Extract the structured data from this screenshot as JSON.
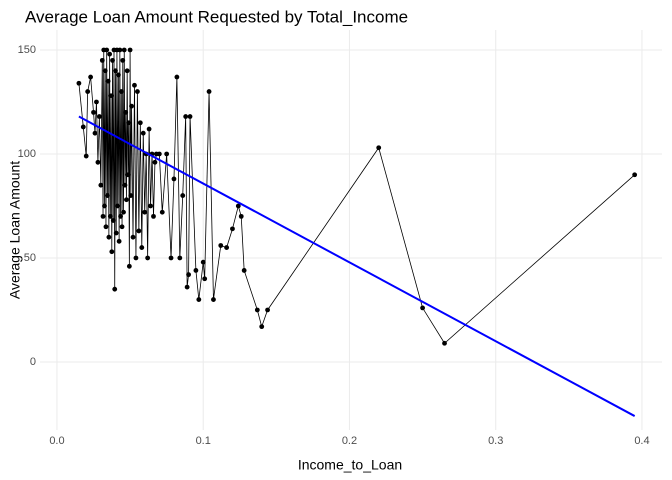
{
  "chart_data": {
    "type": "line",
    "title": "Average Loan Amount Requested by Total_Income",
    "x_label": "Income_to_Loan",
    "y_label": "Average Loan Amount",
    "color": "#000000",
    "x": [
      0.015,
      0.018,
      0.02,
      0.021,
      0.023,
      0.025,
      0.026,
      0.027,
      0.028,
      0.029,
      0.03,
      0.031,
      0.0315,
      0.032,
      0.0325,
      0.033,
      0.0335,
      0.034,
      0.0345,
      0.035,
      0.0355,
      0.036,
      0.0365,
      0.037,
      0.0375,
      0.038,
      0.0385,
      0.039,
      0.0395,
      0.04,
      0.0405,
      0.041,
      0.0415,
      0.042,
      0.0425,
      0.043,
      0.0435,
      0.044,
      0.0445,
      0.045,
      0.0455,
      0.046,
      0.0465,
      0.047,
      0.0475,
      0.048,
      0.0485,
      0.049,
      0.0495,
      0.05,
      0.0505,
      0.051,
      0.052,
      0.053,
      0.054,
      0.055,
      0.056,
      0.057,
      0.058,
      0.059,
      0.06,
      0.061,
      0.062,
      0.063,
      0.064,
      0.065,
      0.066,
      0.067,
      0.068,
      0.07,
      0.072,
      0.075,
      0.078,
      0.08,
      0.082,
      0.084,
      0.086,
      0.088,
      0.089,
      0.09,
      0.091,
      0.095,
      0.097,
      0.1,
      0.101,
      0.104,
      0.107,
      0.112,
      0.116,
      0.12,
      0.124,
      0.126,
      0.128,
      0.137,
      0.14,
      0.144,
      0.22,
      0.25,
      0.265,
      0.395
    ],
    "values": [
      134,
      113,
      99,
      130,
      137,
      120,
      110,
      125,
      96,
      118,
      85,
      145,
      70,
      150,
      75,
      140,
      65,
      150,
      80,
      135,
      60,
      148,
      70,
      128,
      53,
      145,
      68,
      150,
      35,
      140,
      62,
      150,
      75,
      138,
      58,
      150,
      70,
      130,
      65,
      145,
      72,
      150,
      85,
      120,
      78,
      140,
      90,
      115,
      46,
      150,
      80,
      123,
      60,
      133,
      50,
      130,
      63,
      115,
      55,
      110,
      72,
      100,
      50,
      112,
      75,
      100,
      70,
      96,
      100,
      100,
      72,
      100,
      50,
      88,
      137,
      50,
      80,
      118,
      36,
      42,
      118,
      44,
      30,
      48,
      40,
      130,
      30,
      56,
      55,
      64,
      75,
      70,
      44,
      25,
      17,
      25,
      103,
      26,
      9,
      90
    ],
    "trend": {
      "x": [
        0.015,
        0.395
      ],
      "values": [
        118,
        -26
      ],
      "color": "#0000ff"
    },
    "xlim": [
      -0.0116,
      0.4137
    ],
    "ylim": [
      -32.7,
      159.6
    ],
    "xticks": [
      {
        "value": 0,
        "label": "0.0"
      },
      0.1,
      0.2,
      0.3,
      0.4
    ],
    "yticks": [
      0,
      50,
      100,
      150
    ],
    "grid": true
  }
}
